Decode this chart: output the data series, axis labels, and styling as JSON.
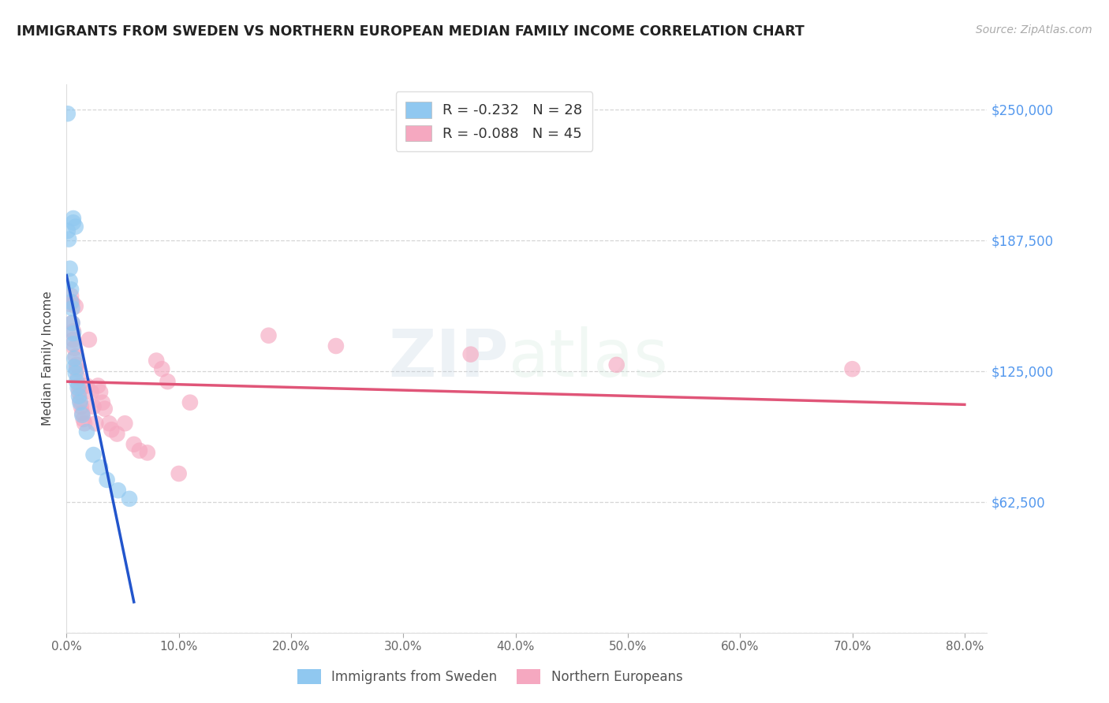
{
  "title": "IMMIGRANTS FROM SWEDEN VS NORTHERN EUROPEAN MEDIAN FAMILY INCOME CORRELATION CHART",
  "source": "Source: ZipAtlas.com",
  "ylabel": "Median Family Income",
  "yticks": [
    0,
    62500,
    125000,
    187500,
    250000
  ],
  "ytick_labels": [
    "",
    "$62,500",
    "$125,000",
    "$187,500",
    "$250,000"
  ],
  "xticks": [
    0.0,
    0.1,
    0.2,
    0.3,
    0.4,
    0.5,
    0.6,
    0.7,
    0.8
  ],
  "xtick_labels": [
    "0.0%",
    "10.0%",
    "20.0%",
    "30.0%",
    "40.0%",
    "50.0%",
    "60.0%",
    "70.0%",
    "80.0%"
  ],
  "xlim": [
    0.0,
    0.82
  ],
  "ylim": [
    0,
    262000
  ],
  "watermark_zip": "ZIP",
  "watermark_atlas": "atlas",
  "legend_sweden": "Immigrants from Sweden",
  "legend_northern": "Northern Europeans",
  "R_sweden": -0.232,
  "N_sweden": 28,
  "R_northern": -0.088,
  "N_northern": 45,
  "color_sweden": "#90C8F0",
  "color_northern": "#F5A8C0",
  "color_line_sweden": "#2255CC",
  "color_line_northern": "#E05578",
  "color_ytick": "#5599EE",
  "color_title": "#222222",
  "background_color": "#FFFFFF",
  "sweden_x": [
    0.001,
    0.006,
    0.006,
    0.008,
    0.001,
    0.002,
    0.003,
    0.003,
    0.004,
    0.004,
    0.005,
    0.005,
    0.006,
    0.006,
    0.007,
    0.007,
    0.008,
    0.009,
    0.01,
    0.011,
    0.012,
    0.014,
    0.018,
    0.024,
    0.03,
    0.036,
    0.046,
    0.056
  ],
  "sweden_y": [
    248000,
    198000,
    196000,
    194000,
    192000,
    188000,
    174000,
    168000,
    164000,
    158000,
    155000,
    148000,
    143000,
    138000,
    131000,
    127000,
    124000,
    120000,
    117000,
    113000,
    110000,
    104000,
    96000,
    85000,
    79000,
    73000,
    68000,
    64000
  ],
  "northern_x": [
    0.003,
    0.004,
    0.005,
    0.005,
    0.006,
    0.006,
    0.007,
    0.008,
    0.008,
    0.009,
    0.009,
    0.01,
    0.011,
    0.011,
    0.012,
    0.013,
    0.014,
    0.015,
    0.016,
    0.018,
    0.02,
    0.022,
    0.024,
    0.026,
    0.028,
    0.03,
    0.032,
    0.034,
    0.038,
    0.04,
    0.045,
    0.052,
    0.06,
    0.065,
    0.072,
    0.08,
    0.085,
    0.09,
    0.1,
    0.11,
    0.18,
    0.24,
    0.36,
    0.49,
    0.7
  ],
  "northern_y": [
    157000,
    161000,
    158000,
    148000,
    144000,
    140000,
    136000,
    132000,
    156000,
    128000,
    126000,
    122000,
    118000,
    115000,
    111000,
    108000,
    105000,
    102000,
    100000,
    118000,
    140000,
    115000,
    108000,
    100000,
    118000,
    115000,
    110000,
    107000,
    100000,
    97000,
    95000,
    100000,
    90000,
    87000,
    86000,
    130000,
    126000,
    120000,
    76000,
    110000,
    142000,
    137000,
    133000,
    128000,
    126000
  ],
  "sweden_line_x0": 0.0,
  "sweden_line_x_solid_end": 0.06,
  "sweden_line_x_dash_end": 0.38,
  "northern_line_x0": 0.0,
  "northern_line_x1": 0.8,
  "northern_line_y0": 120000,
  "northern_line_y1": 109000
}
